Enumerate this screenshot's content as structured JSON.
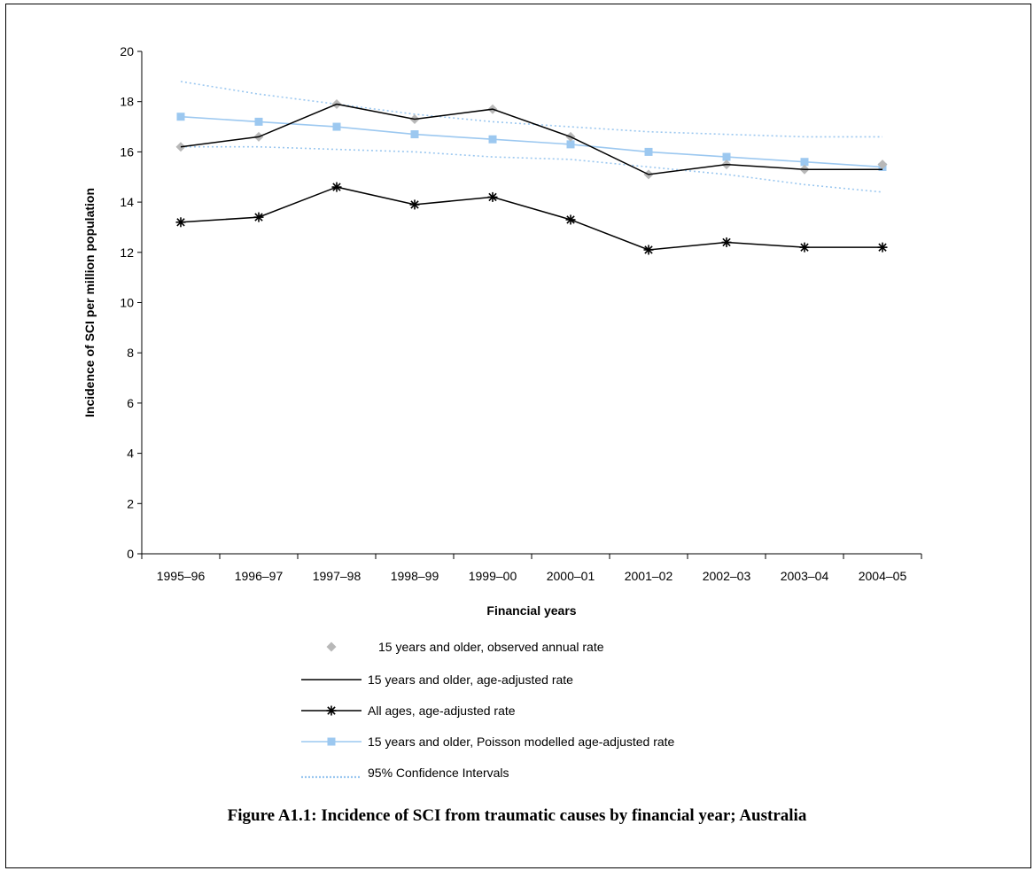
{
  "caption": "Figure A1.1:  Incidence of SCI from traumatic causes by financial year; Australia",
  "chart_data": {
    "type": "line",
    "title": "",
    "xlabel": "Financial years",
    "ylabel": "Incidence of SCI per million population",
    "ylim": [
      0,
      20
    ],
    "yticks": [
      0,
      2,
      4,
      6,
      8,
      10,
      12,
      14,
      16,
      18,
      20
    ],
    "grid": false,
    "legend_position": "bottom",
    "categories": [
      "1995–96",
      "1996–97",
      "1997–98",
      "1998–99",
      "1999–00",
      "2000–01",
      "2001–02",
      "2002–03",
      "2003–04",
      "2004–05"
    ],
    "series": [
      {
        "name": "15 years and older, observed annual rate",
        "style": "marker-diamond",
        "color": "#b8b8b8",
        "values": [
          16.2,
          16.6,
          17.9,
          17.3,
          17.7,
          16.6,
          15.1,
          15.5,
          15.3,
          15.5
        ]
      },
      {
        "name": "15 years and older, age-adjusted rate",
        "style": "line",
        "color": "#000000",
        "values": [
          16.2,
          16.6,
          17.9,
          17.3,
          17.7,
          16.6,
          15.1,
          15.5,
          15.3,
          15.3
        ]
      },
      {
        "name": "All ages, age-adjusted rate",
        "style": "line-star",
        "color": "#000000",
        "values": [
          13.2,
          13.4,
          14.6,
          13.9,
          14.2,
          13.3,
          12.1,
          12.4,
          12.2,
          12.2
        ]
      },
      {
        "name": "15 years and older, Poisson modelled age-adjusted rate",
        "style": "line-square",
        "color": "#9cc8f0",
        "values": [
          17.4,
          17.2,
          17.0,
          16.7,
          16.5,
          16.3,
          16.0,
          15.8,
          15.6,
          15.4
        ]
      },
      {
        "name": "95% Confidence Intervals",
        "style": "dotted-band",
        "color": "#9cc8f0",
        "upper": [
          18.8,
          18.3,
          17.9,
          17.5,
          17.2,
          17.0,
          16.8,
          16.7,
          16.6,
          16.6
        ],
        "lower": [
          16.2,
          16.2,
          16.1,
          16.0,
          15.8,
          15.7,
          15.4,
          15.1,
          14.7,
          14.4
        ]
      }
    ]
  }
}
